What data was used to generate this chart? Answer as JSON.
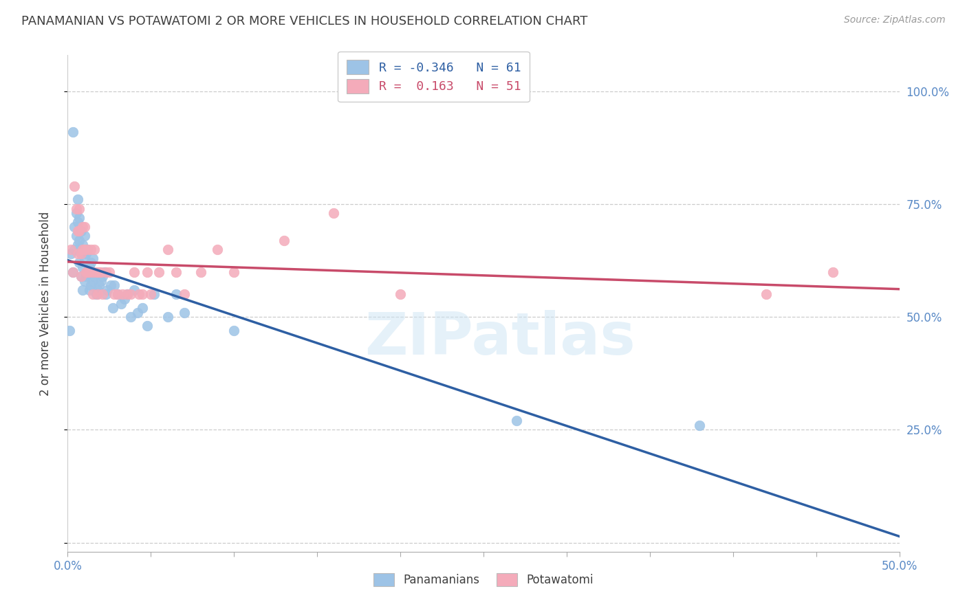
{
  "title": "PANAMANIAN VS POTAWATOMI 2 OR MORE VEHICLES IN HOUSEHOLD CORRELATION CHART",
  "source": "Source: ZipAtlas.com",
  "ylabel": "2 or more Vehicles in Household",
  "xlim": [
    0.0,
    0.5
  ],
  "ylim": [
    -0.02,
    1.08
  ],
  "xticks": [
    0.0,
    0.05,
    0.1,
    0.15,
    0.2,
    0.25,
    0.3,
    0.35,
    0.4,
    0.45,
    0.5
  ],
  "xticklabels_visible": {
    "0.0": "0.0%",
    "0.5": "50.0%"
  },
  "yticks": [
    0.0,
    0.25,
    0.5,
    0.75,
    1.0
  ],
  "yticklabels_right": [
    "",
    "25.0%",
    "50.0%",
    "75.0%",
    "100.0%"
  ],
  "blue_color": "#9DC3E6",
  "pink_color": "#F4ABBA",
  "blue_line_color": "#2E5FA3",
  "pink_line_color": "#C84B6A",
  "legend_blue_R": "-0.346",
  "legend_blue_N": "61",
  "legend_pink_R": " 0.163",
  "legend_pink_N": "51",
  "legend_label_blue": "Panamanians",
  "legend_label_pink": "Potawatomi",
  "watermark": "ZIPatlas",
  "blue_x": [
    0.001,
    0.002,
    0.003,
    0.003,
    0.004,
    0.004,
    0.005,
    0.005,
    0.006,
    0.006,
    0.006,
    0.007,
    0.007,
    0.007,
    0.008,
    0.008,
    0.008,
    0.009,
    0.009,
    0.009,
    0.01,
    0.01,
    0.01,
    0.011,
    0.011,
    0.012,
    0.012,
    0.013,
    0.013,
    0.014,
    0.014,
    0.015,
    0.015,
    0.016,
    0.017,
    0.018,
    0.019,
    0.02,
    0.021,
    0.022,
    0.023,
    0.024,
    0.026,
    0.027,
    0.028,
    0.03,
    0.032,
    0.034,
    0.036,
    0.038,
    0.04,
    0.042,
    0.045,
    0.048,
    0.052,
    0.06,
    0.065,
    0.07,
    0.1,
    0.27,
    0.38
  ],
  "blue_y": [
    0.47,
    0.64,
    0.91,
    0.6,
    0.7,
    0.65,
    0.73,
    0.68,
    0.76,
    0.71,
    0.66,
    0.72,
    0.67,
    0.62,
    0.69,
    0.64,
    0.59,
    0.66,
    0.61,
    0.56,
    0.68,
    0.63,
    0.58,
    0.64,
    0.59,
    0.65,
    0.6,
    0.61,
    0.56,
    0.62,
    0.57,
    0.63,
    0.58,
    0.59,
    0.55,
    0.56,
    0.57,
    0.58,
    0.59,
    0.6,
    0.55,
    0.56,
    0.57,
    0.52,
    0.57,
    0.55,
    0.53,
    0.54,
    0.55,
    0.5,
    0.56,
    0.51,
    0.52,
    0.48,
    0.55,
    0.5,
    0.55,
    0.51,
    0.47,
    0.27,
    0.26
  ],
  "pink_x": [
    0.002,
    0.003,
    0.004,
    0.005,
    0.006,
    0.006,
    0.007,
    0.007,
    0.008,
    0.008,
    0.009,
    0.009,
    0.01,
    0.01,
    0.011,
    0.012,
    0.012,
    0.013,
    0.014,
    0.015,
    0.015,
    0.016,
    0.017,
    0.018,
    0.019,
    0.02,
    0.021,
    0.023,
    0.025,
    0.028,
    0.03,
    0.033,
    0.036,
    0.038,
    0.04,
    0.043,
    0.045,
    0.048,
    0.05,
    0.055,
    0.06,
    0.065,
    0.07,
    0.08,
    0.09,
    0.1,
    0.13,
    0.16,
    0.2,
    0.42,
    0.46
  ],
  "pink_y": [
    0.65,
    0.6,
    0.79,
    0.74,
    0.69,
    0.64,
    0.74,
    0.69,
    0.64,
    0.59,
    0.7,
    0.65,
    0.7,
    0.65,
    0.6,
    0.65,
    0.6,
    0.6,
    0.65,
    0.6,
    0.55,
    0.65,
    0.6,
    0.55,
    0.6,
    0.6,
    0.55,
    0.6,
    0.6,
    0.55,
    0.55,
    0.55,
    0.55,
    0.55,
    0.6,
    0.55,
    0.55,
    0.6,
    0.55,
    0.6,
    0.65,
    0.6,
    0.55,
    0.6,
    0.65,
    0.6,
    0.67,
    0.73,
    0.55,
    0.55,
    0.6
  ],
  "background_color": "#ffffff",
  "grid_color": "#cccccc",
  "title_color": "#404040",
  "ylabel_color": "#404040",
  "tick_right_color": "#5a8ac6",
  "tick_bottom_color": "#5a8ac6"
}
